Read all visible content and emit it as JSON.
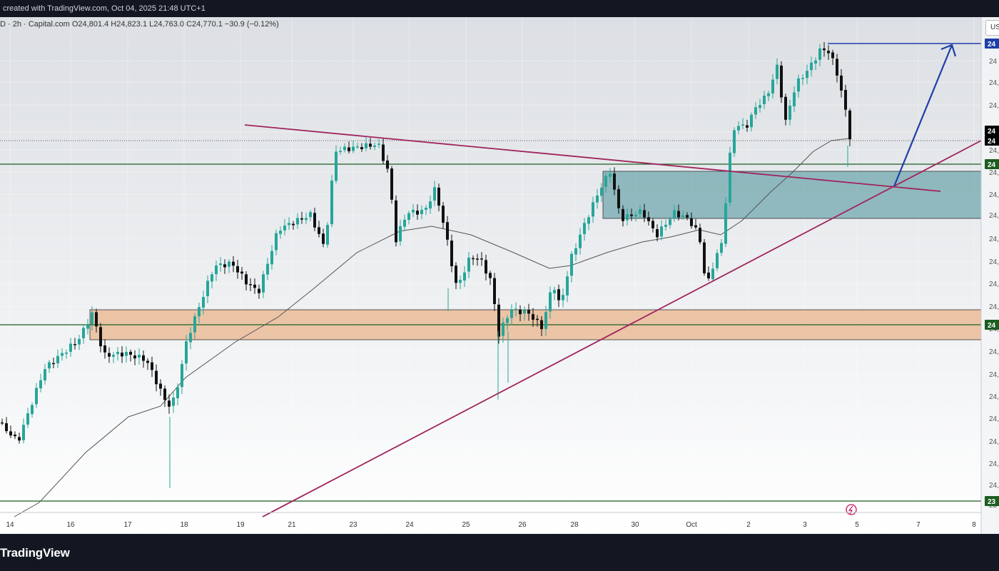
{
  "header": {
    "credit": "created with TradingView.com, Oct 04, 2025 21:48 UTC+1",
    "legend": "D · 2h · Capital.com  O24,801.4  H24,823.1  L24,763.0  C24,770.1  −30.9 (−0.12%)",
    "currency_button": "US"
  },
  "footer": {
    "brand": "TradingView"
  },
  "chart_data": {
    "type": "candlestick",
    "interval": "2h",
    "source": "Capital.com",
    "ohlc": {
      "open": 24801.4,
      "high": 24823.1,
      "low": 24763.0,
      "close": 24770.1,
      "change": -30.9,
      "change_pct": -0.12
    },
    "x_tick_labels": [
      "14",
      "16",
      "17",
      "18",
      "19",
      "21",
      "23",
      "24",
      "25",
      "26",
      "28",
      "30",
      "Oct",
      "2",
      "3",
      "5",
      "7",
      "8"
    ],
    "y_tick_labels": [
      "24",
      "24,",
      "24,",
      "24,",
      "24,",
      "24,",
      "24,",
      "24,",
      "24,",
      "24,",
      "24,",
      "24,",
      "24,",
      "24,",
      "24,",
      "24,",
      "24,",
      "24,",
      "24,",
      "24,",
      "23"
    ],
    "price_tags": [
      {
        "text": "24",
        "color": "#1e3fa8"
      },
      {
        "text": "24",
        "color": "#000000"
      },
      {
        "text": "24",
        "color": "#000000"
      },
      {
        "text": "24",
        "color": "#1b5e20"
      },
      {
        "text": "24",
        "color": "#1b5e20"
      },
      {
        "text": "23",
        "color": "#1b5e20"
      }
    ],
    "colors": {
      "up": "#26a69a",
      "down": "#111111",
      "moving_average": "#555555",
      "trendline": "#a0245e",
      "projection_arrow": "#1e3fa8",
      "horizontal_level": "#1b5e20",
      "resistance_zone_fill": "#e9b48c",
      "support_zone_fill": "#5f9ea5"
    },
    "drawings": [
      "descending trendline",
      "ascending trendline",
      "orange demand zone",
      "teal consolidation zone",
      "projection arrow to prior high",
      "horizontal levels"
    ],
    "grid": true
  }
}
